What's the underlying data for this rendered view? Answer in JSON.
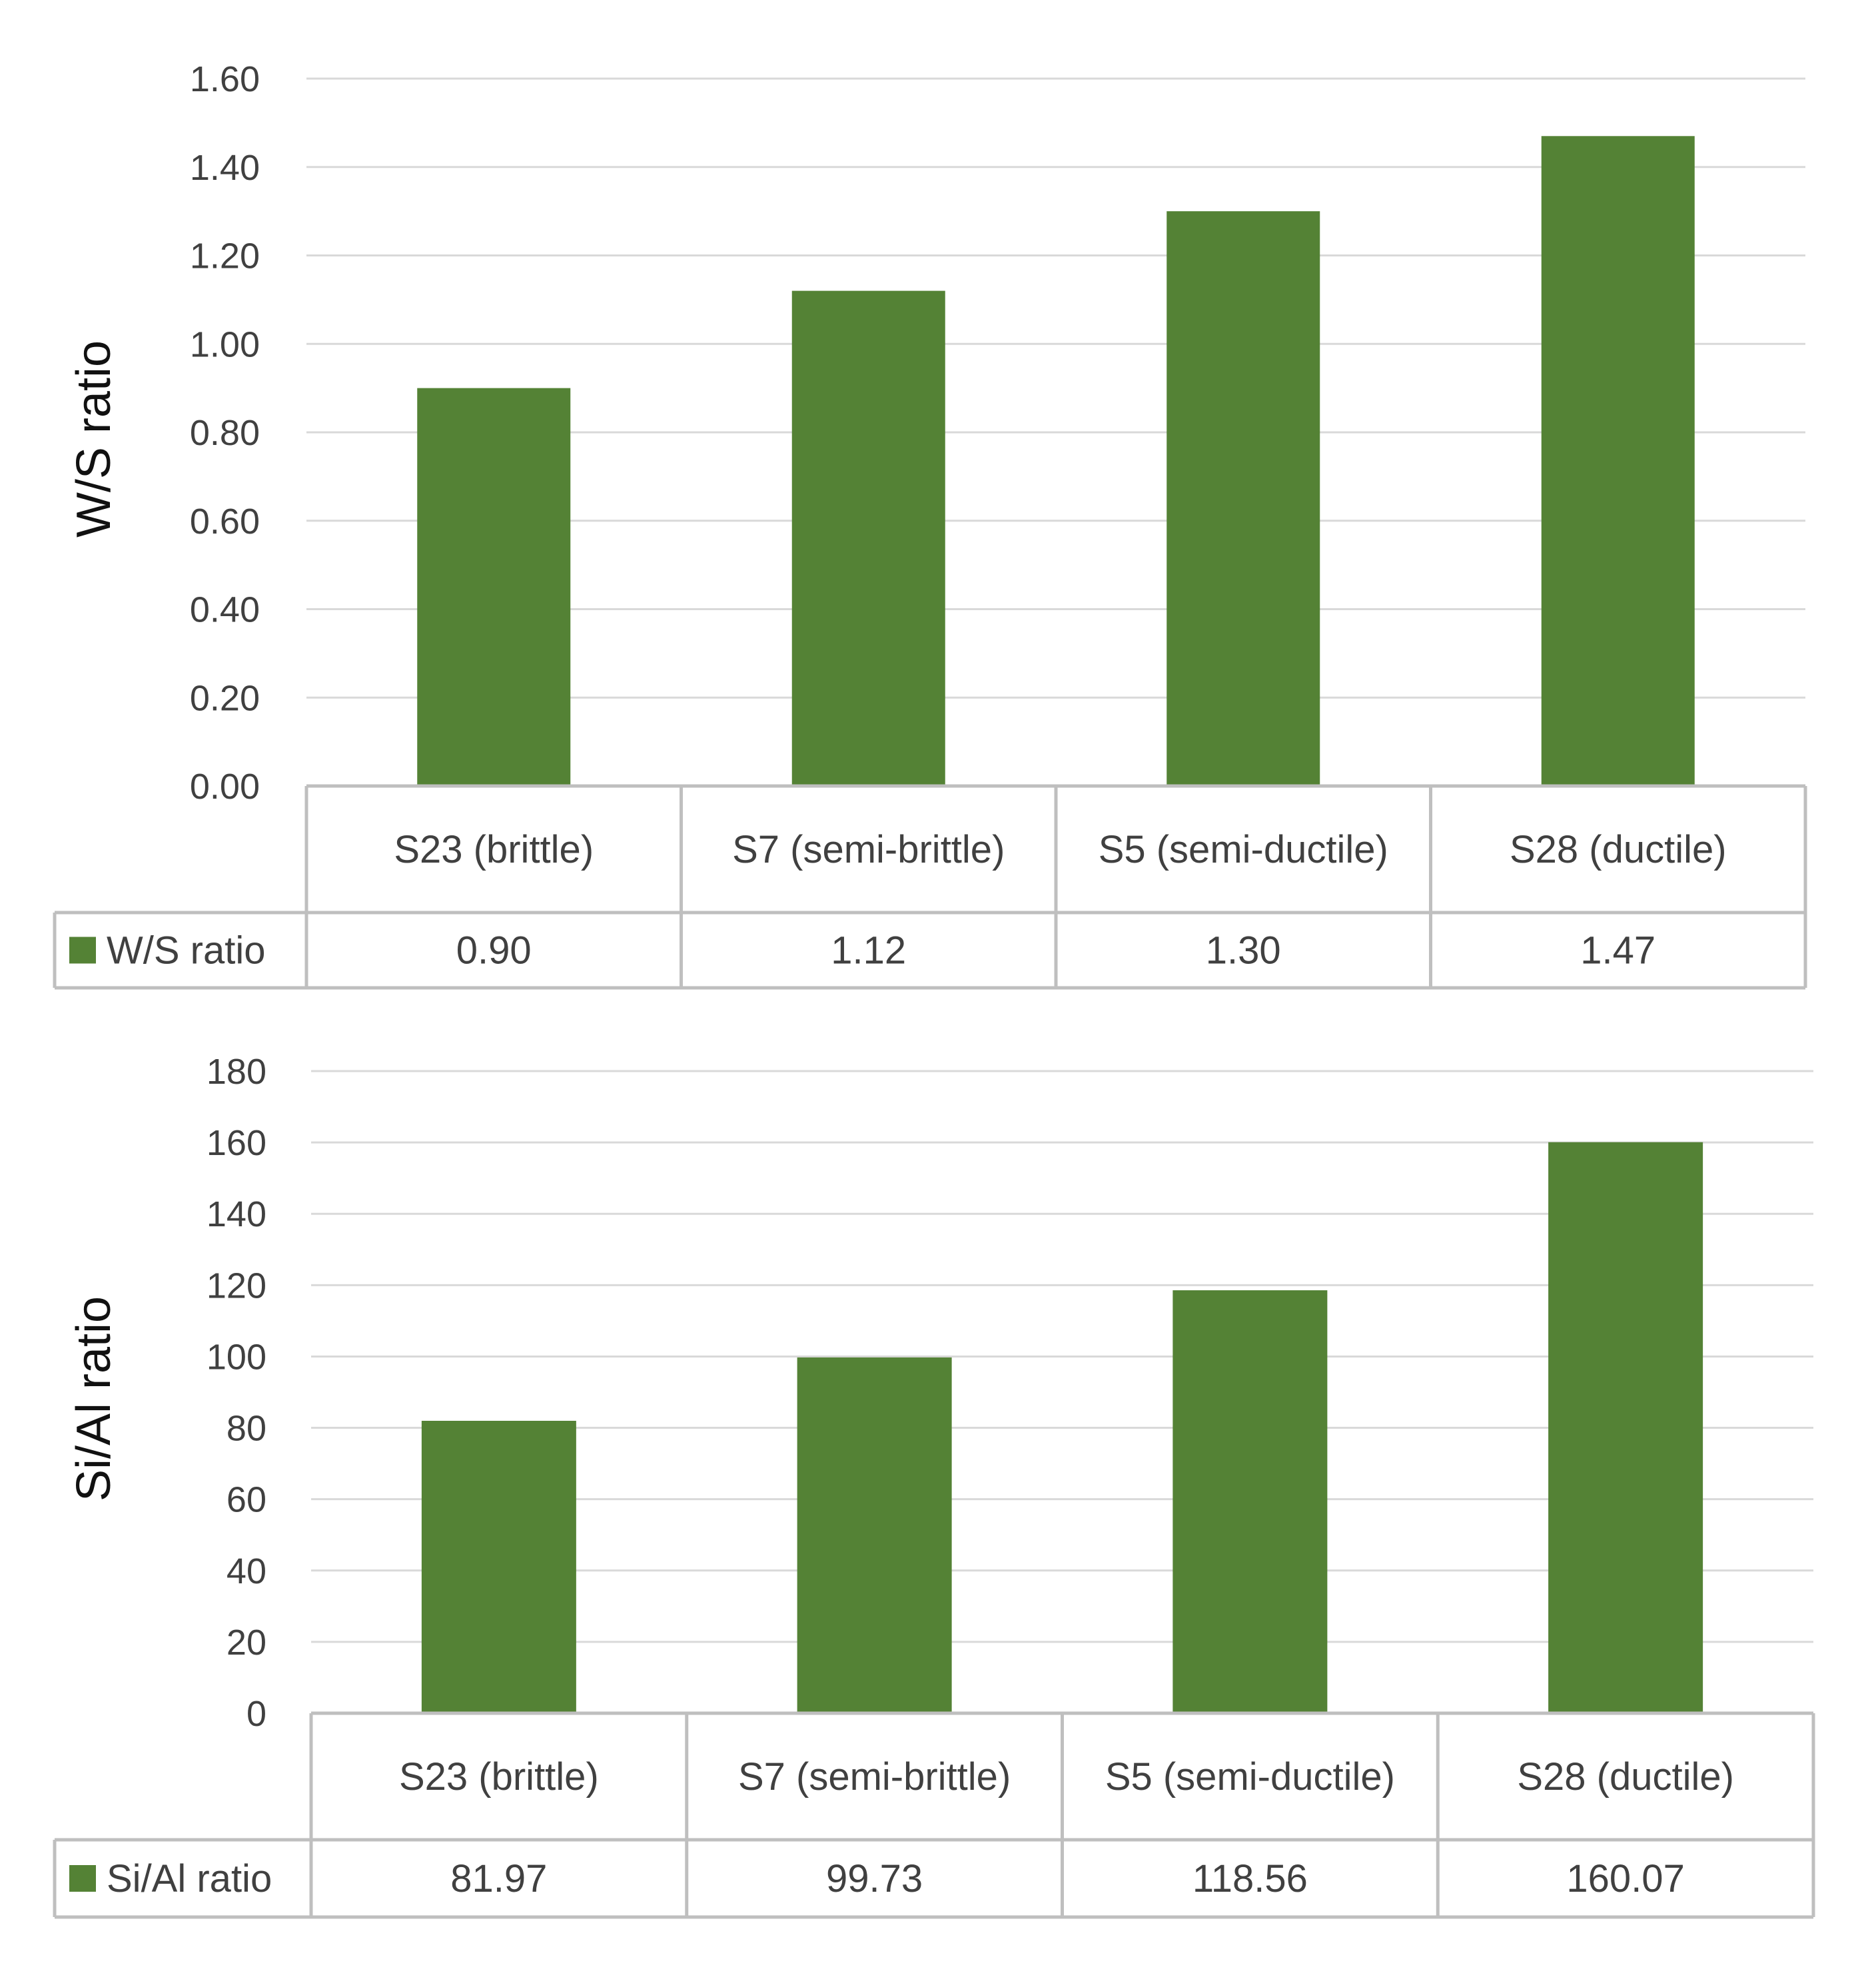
{
  "colors": {
    "bar": "#548235",
    "grid": "#d9d9d9",
    "table_border": "#bfbfbf",
    "text": "#404040"
  },
  "chart_data": [
    {
      "type": "bar",
      "title": "",
      "xlabel": "",
      "ylabel": "W/S ratio",
      "ylim": [
        0,
        1.6
      ],
      "yticks": [
        "0.00",
        "0.20",
        "0.40",
        "0.60",
        "0.80",
        "1.00",
        "1.20",
        "1.40",
        "1.60"
      ],
      "categories": [
        "S23 (brittle)",
        "S7 (semi-brittle)",
        "S5 (semi-ductile)",
        "S28 (ductile)"
      ],
      "series": [
        {
          "name": "W/S ratio",
          "values": [
            0.9,
            1.12,
            1.3,
            1.47
          ],
          "labels": [
            "0.90",
            "1.12",
            "1.30",
            "1.47"
          ]
        }
      ],
      "grid": true,
      "data_table": true
    },
    {
      "type": "bar",
      "title": "",
      "xlabel": "",
      "ylabel": "Si/Al ratio",
      "ylim": [
        0,
        180
      ],
      "yticks": [
        "0",
        "20",
        "40",
        "60",
        "80",
        "100",
        "120",
        "140",
        "160",
        "180"
      ],
      "categories": [
        "S23 (brittle)",
        "S7 (semi-brittle)",
        "S5 (semi-ductile)",
        "S28 (ductile)"
      ],
      "series": [
        {
          "name": "Si/Al ratio",
          "values": [
            81.97,
            99.73,
            118.56,
            160.07
          ],
          "labels": [
            "81.97",
            "99.73",
            "118.56",
            "160.07"
          ]
        }
      ],
      "grid": true,
      "data_table": true
    }
  ]
}
